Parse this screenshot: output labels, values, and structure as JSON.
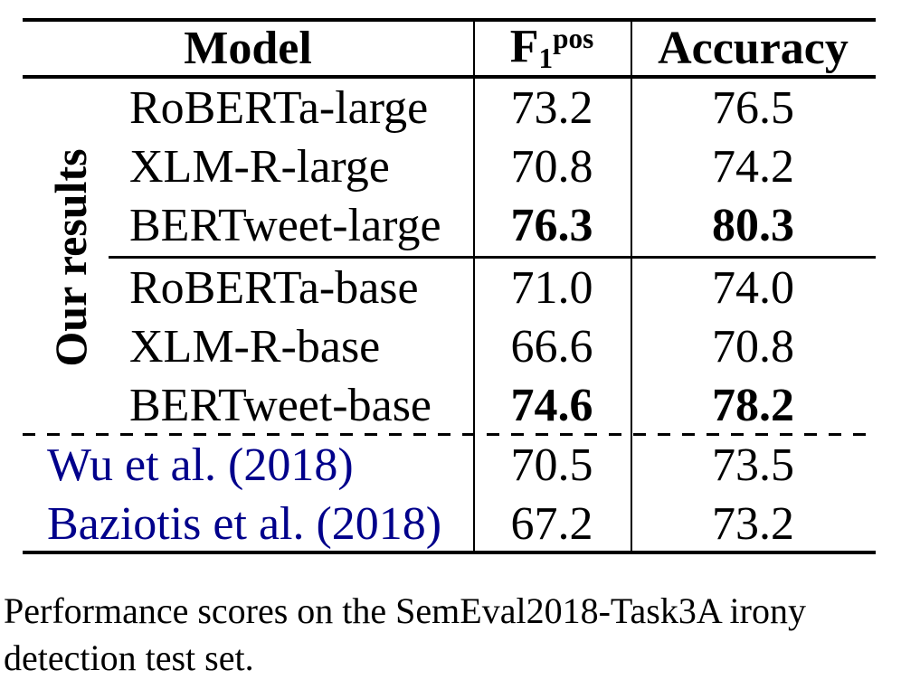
{
  "colors": {
    "text": "#000000",
    "citation_link": "#00008B",
    "rule": "#000000",
    "background": "#ffffff"
  },
  "table": {
    "header": {
      "model": "Model",
      "f1": {
        "base": "F",
        "sub": "1",
        "sup": "pos"
      },
      "accuracy": "Accuracy"
    },
    "group_label": "Our results",
    "rows": [
      {
        "model": "RoBERTa-large",
        "f1": "73.2",
        "accuracy": "76.5",
        "bold_scores": false,
        "citation": false
      },
      {
        "model": "XLM-R-large",
        "f1": "70.8",
        "accuracy": "74.2",
        "bold_scores": false,
        "citation": false
      },
      {
        "model": "BERTweet-large",
        "f1": "76.3",
        "accuracy": "80.3",
        "bold_scores": true,
        "citation": false
      },
      {
        "model": "RoBERTa-base",
        "f1": "71.0",
        "accuracy": "74.0",
        "bold_scores": false,
        "citation": false
      },
      {
        "model": "XLM-R-base",
        "f1": "66.6",
        "accuracy": "70.8",
        "bold_scores": false,
        "citation": false
      },
      {
        "model": "BERTweet-base",
        "f1": "74.6",
        "accuracy": "78.2",
        "bold_scores": true,
        "citation": false
      },
      {
        "model": "Wu et al. (2018)",
        "f1": "70.5",
        "accuracy": "73.5",
        "bold_scores": false,
        "citation": true
      },
      {
        "model": "Baziotis et al. (2018)",
        "f1": "67.2",
        "accuracy": "73.2",
        "bold_scores": false,
        "citation": true
      }
    ],
    "caption": {
      "line1": "Performance scores on the SemEval2018-Task3A irony",
      "line2": "detection test set."
    }
  }
}
